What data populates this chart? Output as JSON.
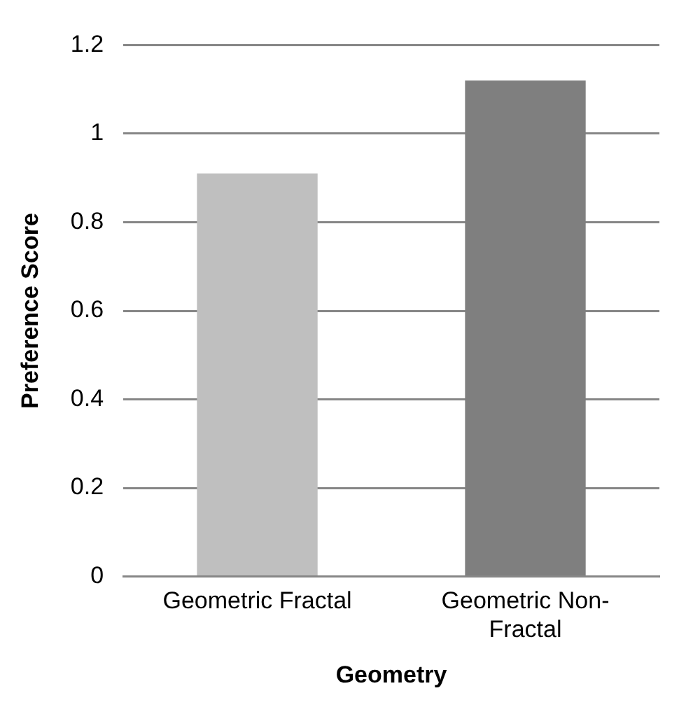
{
  "chart_data": {
    "type": "bar",
    "xlabel": "Geometry",
    "ylabel": "Preference Score",
    "categories": [
      "Geometric Fractal",
      "Geometric Non-Fractal"
    ],
    "values": [
      0.91,
      1.12
    ],
    "colors": [
      "#bfbfbf",
      "#7f7f7f"
    ],
    "ylim": [
      0,
      1.2
    ],
    "yticks": [
      0,
      0.2,
      0.4,
      0.6,
      0.8,
      1,
      1.2
    ],
    "grid": "y"
  }
}
